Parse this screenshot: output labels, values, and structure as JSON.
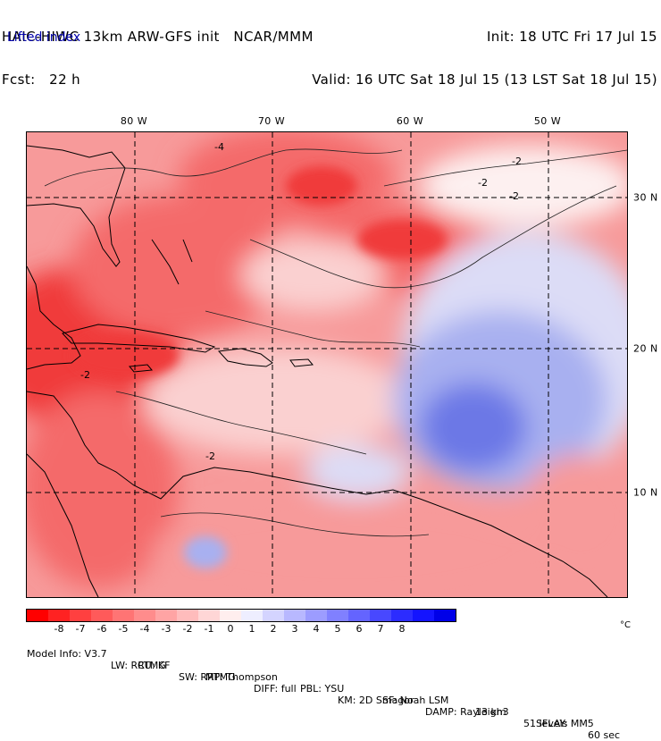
{
  "header": {
    "model_line": "HAIC-HIWC 13km ARW-GFS init   NCAR/MMM",
    "forecast_line": "Fcst:   22 h",
    "init_line": "Init: 18 UTC Fri 17 Jul 15",
    "valid_line": "Valid: 16 UTC Sat 18 Jul 15 (13 LST Sat 18 Jul 15)",
    "field_name": "Lifted index"
  },
  "map": {
    "lon_labels": [
      "80 W",
      "70 W",
      "60 W",
      "50 W"
    ],
    "lat_labels": [
      "30 N",
      "20 N",
      "10 N"
    ],
    "contour_labels": [
      "-2",
      "-2",
      "-2",
      "-2",
      "-4",
      "-2"
    ],
    "colors": {
      "strong_unstable": "#f03a3a",
      "unstable": "#f46a6a",
      "moderate": "#f79a9a",
      "weak": "#fad0d0",
      "neutral": "#fdf0f0",
      "stable_light": "#dcdcf6",
      "stable": "#a8b0f0",
      "stable_strong": "#6c78e6"
    }
  },
  "colorbar": {
    "ticks": [
      "-8",
      "-7",
      "-6",
      "-5",
      "-4",
      "-3",
      "-2",
      "-1",
      "0",
      "1",
      "2",
      "3",
      "4",
      "5",
      "6",
      "7",
      "8"
    ],
    "unit": "°C",
    "colors": [
      "#ff0000",
      "#ff2222",
      "#ff4040",
      "#ff5a5a",
      "#ff7474",
      "#ff8c8c",
      "#ffa4a4",
      "#ffbcbc",
      "#ffd6d6",
      "#ffeeee",
      "#eeeeff",
      "#d4d4ff",
      "#b8b8ff",
      "#9c9cff",
      "#8080ff",
      "#6464ff",
      "#4848ff",
      "#2c2cff",
      "#1414ff",
      "#0000e8"
    ]
  },
  "model_info": {
    "row1": [
      "Model Info: V3.7",
      "CU: KF",
      "MP: Thompson",
      "PBL: YSU",
      "SF: Noah LSM",
      "13 km",
      "51 levels",
      "60 sec"
    ],
    "row2": [
      "LW: RRTMG",
      "SW: RRTMG",
      "DIFF: full",
      "KM: 2D Smagor",
      "DAMP: Rayleigh3",
      "SFLAY: MM5"
    ]
  }
}
